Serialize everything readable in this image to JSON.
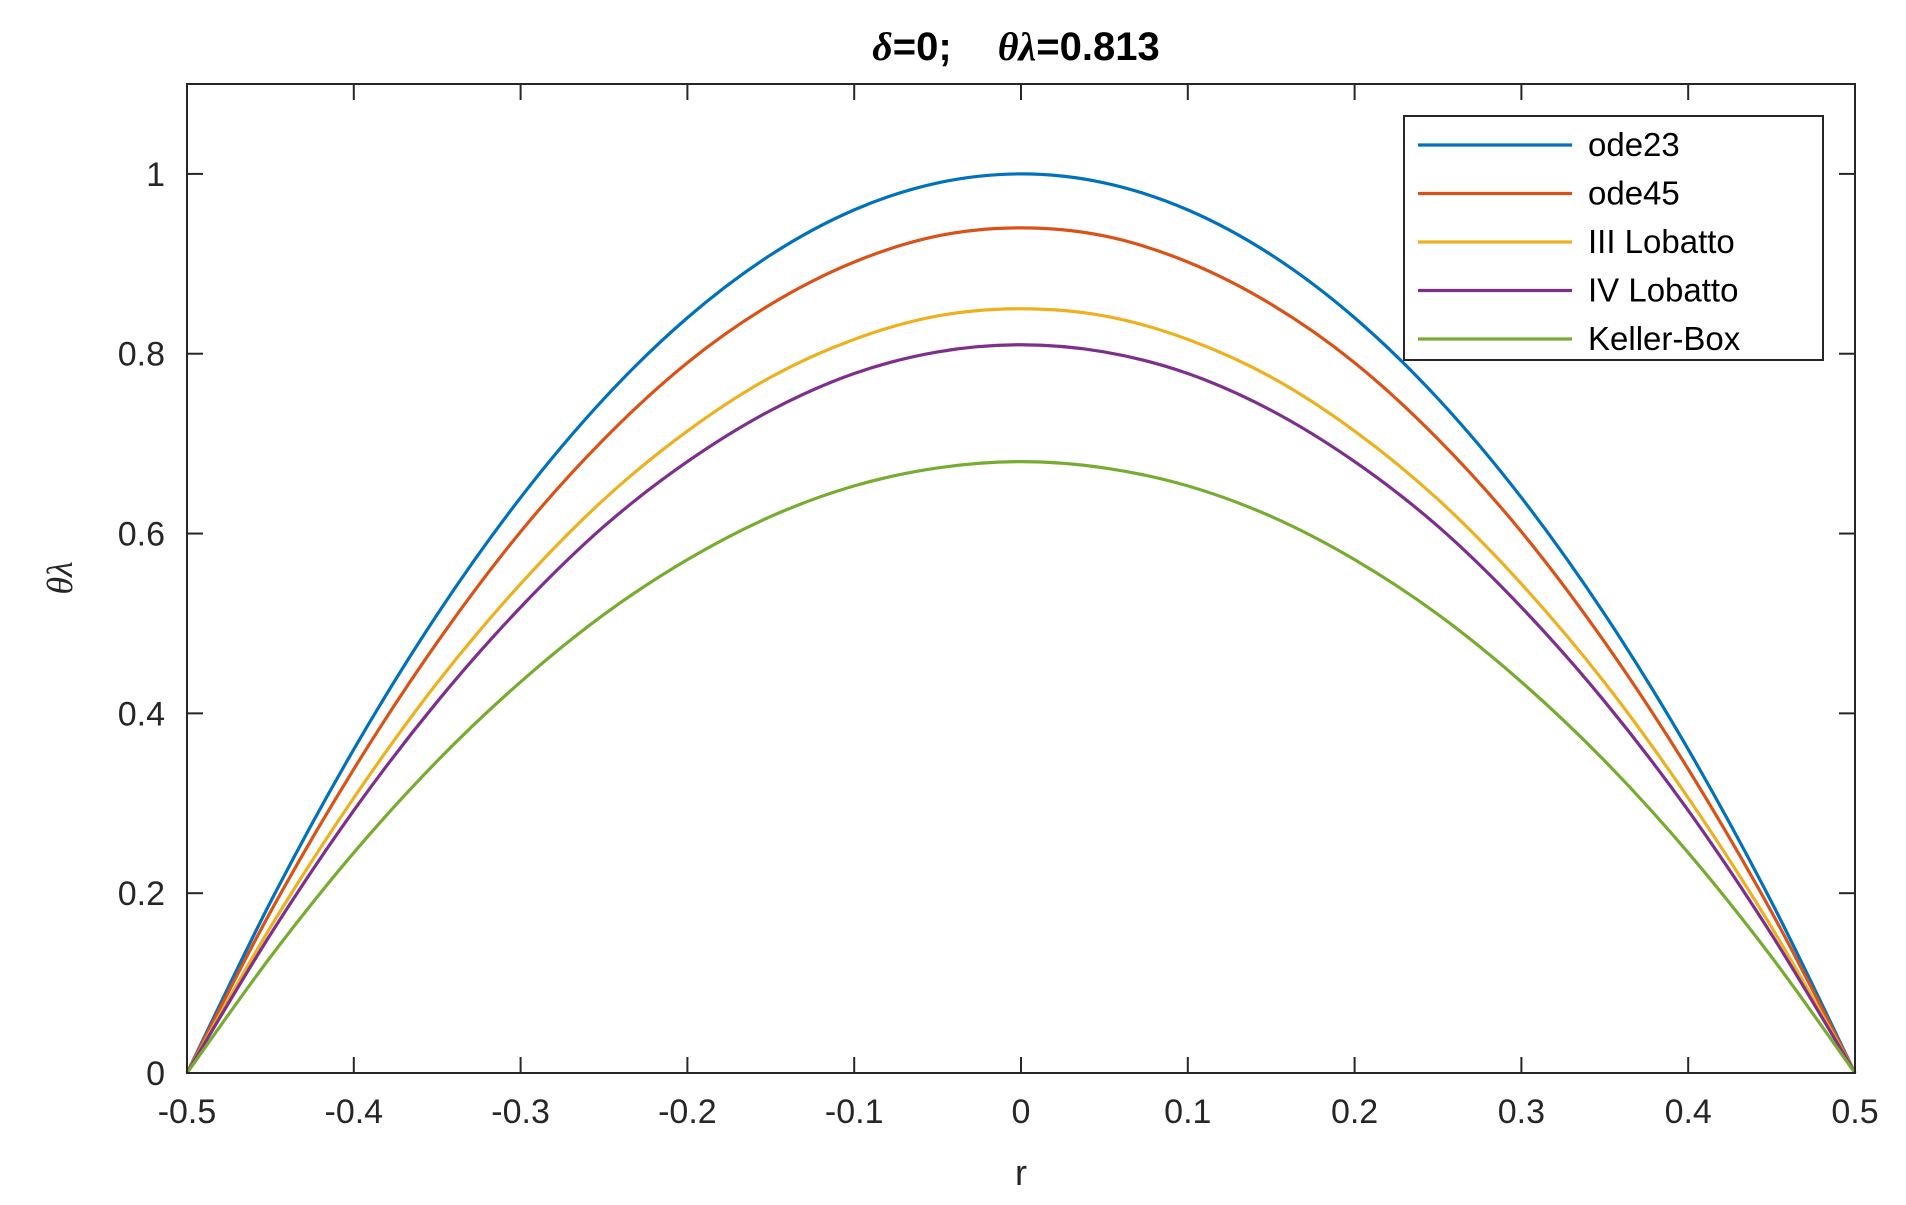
{
  "chart_data": {
    "type": "line",
    "title_parts": {
      "delta_sym": "δ",
      "delta_val": "=0;",
      "theta_lambda_sym": "θλ",
      "theta_lambda_val": "=0.813"
    },
    "title": "δ=0;   θλ=0.813",
    "xlabel": "r",
    "ylabel": "θλ",
    "xlim": [
      -0.5,
      0.5
    ],
    "ylim": [
      0,
      1.1
    ],
    "xticks": [
      -0.5,
      -0.4,
      -0.3,
      -0.2,
      -0.1,
      0,
      0.1,
      0.2,
      0.3,
      0.4,
      0.5
    ],
    "xtick_labels": [
      "-0.5",
      "-0.4",
      "-0.3",
      "-0.2",
      "-0.1",
      "0",
      "0.1",
      "0.2",
      "0.3",
      "0.4",
      "0.5"
    ],
    "yticks": [
      0,
      0.2,
      0.4,
      0.6,
      0.8,
      1
    ],
    "ytick_labels": [
      "0",
      "0.2",
      "0.4",
      "0.6",
      "0.8",
      "1"
    ],
    "grid": false,
    "legend_position": "top-right",
    "x": [
      -0.5,
      -0.45,
      -0.4,
      -0.35,
      -0.3,
      -0.25,
      -0.2,
      -0.15,
      -0.1,
      -0.05,
      0,
      0.05,
      0.1,
      0.15,
      0.2,
      0.25,
      0.3,
      0.35,
      0.4,
      0.45,
      0.5
    ],
    "series": [
      {
        "name": "ode23",
        "color": "#0072BD",
        "values": [
          0,
          0.19,
          0.36,
          0.51,
          0.64,
          0.75,
          0.84,
          0.91,
          0.96,
          0.99,
          1.0,
          0.99,
          0.96,
          0.91,
          0.84,
          0.75,
          0.64,
          0.51,
          0.36,
          0.19,
          0
        ]
      },
      {
        "name": "ode45",
        "color": "#D95319",
        "values": [
          0,
          0.179,
          0.338,
          0.479,
          0.602,
          0.705,
          0.79,
          0.855,
          0.902,
          0.931,
          0.94,
          0.931,
          0.902,
          0.855,
          0.79,
          0.705,
          0.602,
          0.479,
          0.338,
          0.179,
          0
        ]
      },
      {
        "name": "III Lobatto",
        "color": "#EDB120",
        "values": [
          0,
          0.162,
          0.306,
          0.434,
          0.544,
          0.638,
          0.714,
          0.774,
          0.816,
          0.842,
          0.85,
          0.842,
          0.816,
          0.774,
          0.714,
          0.638,
          0.544,
          0.434,
          0.306,
          0.162,
          0
        ]
      },
      {
        "name": "IV Lobatto",
        "color": "#7E2F8E",
        "values": [
          0,
          0.154,
          0.292,
          0.413,
          0.518,
          0.608,
          0.68,
          0.737,
          0.778,
          0.802,
          0.81,
          0.802,
          0.778,
          0.737,
          0.68,
          0.608,
          0.518,
          0.413,
          0.292,
          0.154,
          0
        ]
      },
      {
        "name": "Keller-Box",
        "color": "#77AC30",
        "values": [
          0,
          0.129,
          0.245,
          0.347,
          0.435,
          0.51,
          0.571,
          0.619,
          0.653,
          0.673,
          0.68,
          0.673,
          0.653,
          0.619,
          0.571,
          0.51,
          0.435,
          0.347,
          0.245,
          0.129,
          0
        ]
      }
    ]
  }
}
